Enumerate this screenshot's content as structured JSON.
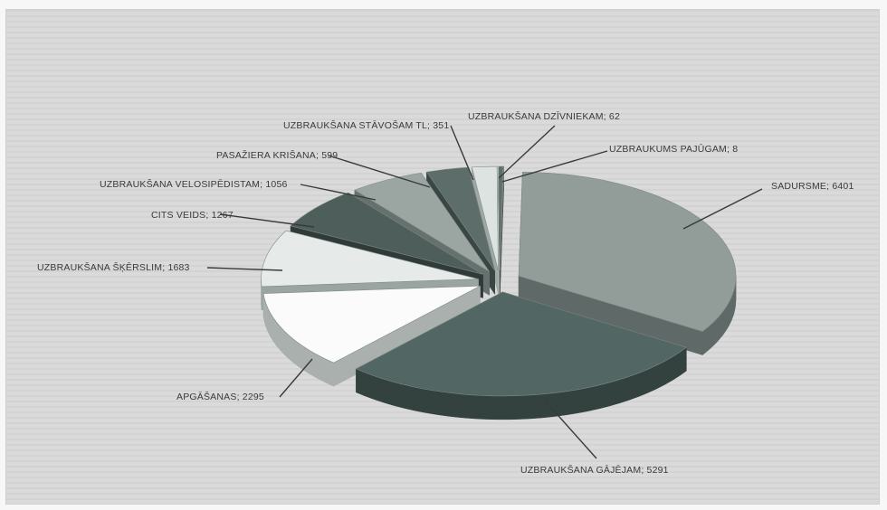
{
  "chart_data": {
    "type": "pie",
    "style": "3d-exploded",
    "slices": [
      {
        "label": "SADURSME",
        "value": 6401,
        "text": "SADURSME; 6401",
        "top": "#929d9a",
        "side": "#5f6967"
      },
      {
        "label": "UZBRAUKŠANA GĀJĒJAM",
        "value": 5291,
        "text": "UZBRAUKŠANA GĀJĒJAM; 5291",
        "top": "#526663",
        "side": "#34423f"
      },
      {
        "label": "APGĀŠANAS",
        "value": 2295,
        "text": "APGĀŠANAS; 2295",
        "top": "#fbfbfb",
        "side": "#a9b0ae"
      },
      {
        "label": "UZBRAUKŠANA ŠĶĒRSLIM",
        "value": 1683,
        "text": "UZBRAUKŠANA ŠĶĒRSLIM; 1683",
        "top": "#e6ebea",
        "side": "#9aa4a1"
      },
      {
        "label": "CITS VEIDS",
        "value": 1267,
        "text": "CITS VEIDS; 1267",
        "top": "#4e5e5b",
        "side": "#303b39"
      },
      {
        "label": "UZBRAUKŠANA VELOSIPĒDISTAM",
        "value": 1056,
        "text": "UZBRAUKŠANA VELOSIPĒDISTAM; 1056",
        "top": "#9ba6a3",
        "side": "#66716e"
      },
      {
        "label": "PASAŽIERA KRIŠANA",
        "value": 599,
        "text": "PASAŽIERA KRIŠANA; 599",
        "top": "#5c6d6a",
        "side": "#3a4644"
      },
      {
        "label": "UZBRAUKŠANA STĀVOŠAM TL",
        "value": 351,
        "text": "UZBRAUKŠANA STĀVOŠAM TL; 351",
        "top": "#dde3e1",
        "side": "#9ea8a5"
      },
      {
        "label": "UZBRAUKŠANA DZĪVNIEKAM",
        "value": 62,
        "text": "UZBRAUKŠANA DZĪVNIEKAM; 62",
        "top": "#5d6e6b",
        "side": "#3a4644"
      },
      {
        "label": "UZBRAUKUMS PAJŪGAM",
        "value": 8,
        "text": "UZBRAUKUMS PAJŪGAM; 8",
        "top": "#6c7b78",
        "side": "#44504e"
      }
    ]
  }
}
